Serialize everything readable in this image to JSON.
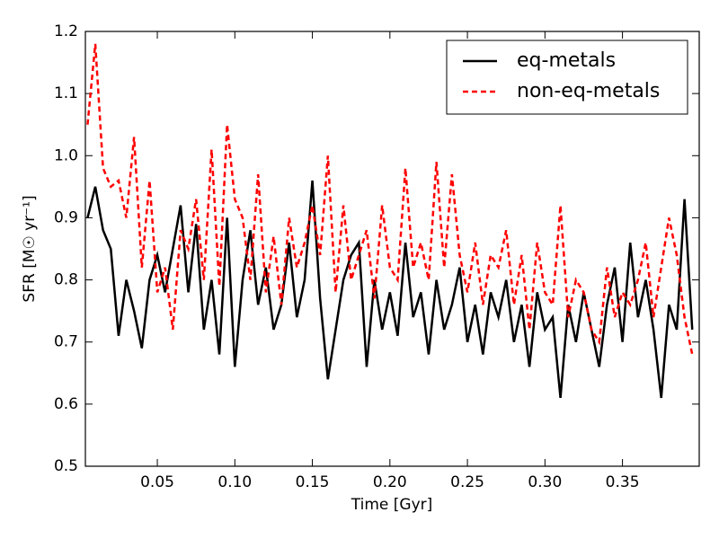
{
  "chart_data": {
    "type": "line",
    "xlabel": "Time [Gyr]",
    "ylabel": "SFR [M☉ yr⁻¹]",
    "x": [
      0.005,
      0.01,
      0.015,
      0.02,
      0.025,
      0.03,
      0.035,
      0.04,
      0.045,
      0.05,
      0.055,
      0.06,
      0.065,
      0.07,
      0.075,
      0.08,
      0.085,
      0.09,
      0.095,
      0.1,
      0.105,
      0.11,
      0.115,
      0.12,
      0.125,
      0.13,
      0.135,
      0.14,
      0.145,
      0.15,
      0.155,
      0.16,
      0.165,
      0.17,
      0.175,
      0.18,
      0.185,
      0.19,
      0.195,
      0.2,
      0.205,
      0.21,
      0.215,
      0.22,
      0.225,
      0.23,
      0.235,
      0.24,
      0.245,
      0.25,
      0.255,
      0.26,
      0.265,
      0.27,
      0.275,
      0.28,
      0.285,
      0.29,
      0.295,
      0.3,
      0.305,
      0.31,
      0.315,
      0.32,
      0.325,
      0.33,
      0.335,
      0.34,
      0.345,
      0.35,
      0.355,
      0.36,
      0.365,
      0.37,
      0.375,
      0.38,
      0.385,
      0.39,
      0.395
    ],
    "series": [
      {
        "name": "eq-metals",
        "color": "#000000",
        "dash": "solid",
        "values": [
          0.9,
          0.95,
          0.88,
          0.85,
          0.71,
          0.8,
          0.75,
          0.69,
          0.8,
          0.84,
          0.78,
          0.85,
          0.92,
          0.78,
          0.89,
          0.72,
          0.8,
          0.68,
          0.9,
          0.66,
          0.8,
          0.88,
          0.76,
          0.82,
          0.72,
          0.76,
          0.86,
          0.74,
          0.8,
          0.96,
          0.77,
          0.64,
          0.72,
          0.8,
          0.84,
          0.86,
          0.66,
          0.8,
          0.72,
          0.78,
          0.71,
          0.86,
          0.74,
          0.78,
          0.68,
          0.8,
          0.72,
          0.76,
          0.82,
          0.7,
          0.76,
          0.68,
          0.78,
          0.74,
          0.8,
          0.7,
          0.76,
          0.66,
          0.78,
          0.72,
          0.74,
          0.61,
          0.76,
          0.7,
          0.78,
          0.72,
          0.66,
          0.76,
          0.82,
          0.7,
          0.86,
          0.74,
          0.8,
          0.72,
          0.61,
          0.76,
          0.72,
          0.93,
          0.72
        ]
      },
      {
        "name": "non-eq-metals",
        "color": "#ff0000",
        "dash": "dashed",
        "values": [
          1.05,
          1.18,
          0.98,
          0.95,
          0.96,
          0.9,
          1.03,
          0.82,
          0.96,
          0.78,
          0.82,
          0.72,
          0.88,
          0.85,
          0.93,
          0.8,
          1.01,
          0.79,
          1.05,
          0.93,
          0.9,
          0.8,
          0.97,
          0.78,
          0.87,
          0.76,
          0.9,
          0.82,
          0.86,
          0.92,
          0.84,
          1.0,
          0.78,
          0.92,
          0.8,
          0.84,
          0.88,
          0.77,
          0.92,
          0.82,
          0.8,
          0.98,
          0.82,
          0.86,
          0.8,
          0.99,
          0.82,
          0.97,
          0.84,
          0.78,
          0.86,
          0.76,
          0.84,
          0.82,
          0.88,
          0.76,
          0.84,
          0.72,
          0.86,
          0.78,
          0.76,
          0.92,
          0.74,
          0.8,
          0.78,
          0.72,
          0.7,
          0.82,
          0.74,
          0.78,
          0.76,
          0.8,
          0.86,
          0.74,
          0.82,
          0.9,
          0.84,
          0.74,
          0.68
        ]
      }
    ],
    "xlim": [
      0.0036,
      0.3995
    ],
    "xticks": [
      0.05,
      {
        "value": 0.1,
        "label": "0.10"
      },
      0.15,
      {
        "value": 0.2,
        "label": "0.20"
      },
      0.25,
      {
        "value": 0.3,
        "label": "0.30"
      },
      0.35
    ],
    "ylim": [
      0.5,
      1.2
    ],
    "yticks": [
      0.5,
      0.6,
      0.7,
      0.8,
      0.9,
      {
        "value": 1,
        "label": "1.0"
      },
      1.1,
      1.2
    ],
    "grid": false,
    "legend": "upper-right"
  }
}
